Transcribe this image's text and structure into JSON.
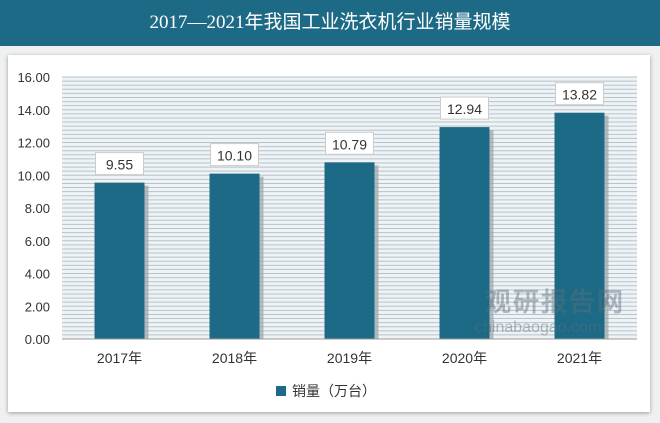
{
  "title": "2017—2021年我国工业洗衣机行业销量规模",
  "watermark": {
    "name": "观研报告网",
    "url": "chinabaogao.com"
  },
  "chart_data": {
    "type": "bar",
    "title": "2017—2021年我国工业洗衣机行业销量规模",
    "categories": [
      "2017年",
      "2018年",
      "2019年",
      "2020年",
      "2021年"
    ],
    "series": [
      {
        "name": "销量（万台）",
        "values": [
          9.55,
          10.1,
          10.79,
          12.94,
          13.82
        ],
        "labels": [
          "9.55",
          "10.10",
          "10.79",
          "12.94",
          "13.82"
        ]
      }
    ],
    "yticks": [
      "0.00",
      "2.00",
      "4.00",
      "6.00",
      "8.00",
      "10.00",
      "12.00",
      "14.00",
      "16.00"
    ],
    "ylim": [
      0,
      16
    ],
    "grid": true,
    "legend": "bottom",
    "color": "#1d6a86"
  }
}
